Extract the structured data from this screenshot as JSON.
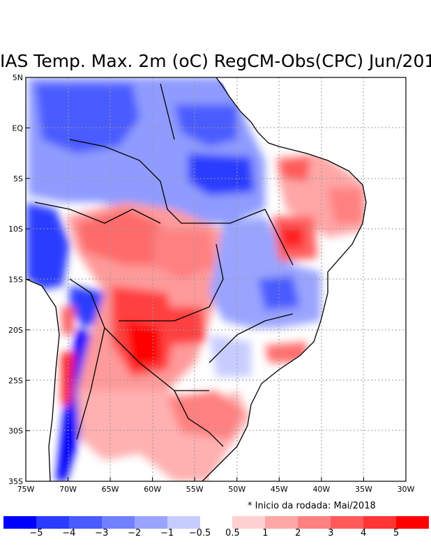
{
  "title": "IAS Temp. Max. 2m (oC) RegCM-Obs(CPC) Jun/201",
  "note": "* Inicio da rodada: Mai/2018",
  "lat_labels": [
    "5N",
    "EQ",
    "5S",
    "10S",
    "15S",
    "20S",
    "25S",
    "30S",
    "35S"
  ],
  "lon_labels": [
    "75W",
    "70W",
    "65W",
    "60W",
    "55W",
    "50W",
    "45W",
    "40W",
    "35W",
    "30W"
  ],
  "colorbar": {
    "colors": [
      "#0000ff",
      "#2a3cff",
      "#4a5bff",
      "#7080ff",
      "#9aa4ff",
      "#c7ccff",
      "#ffffff",
      "#ffd0d0",
      "#ffa6a6",
      "#ff8080",
      "#ff5a5a",
      "#ff3535",
      "#ff0000"
    ],
    "labels": [
      "−5",
      "−4",
      "−3",
      "−2",
      "−1",
      "−0.5",
      "0.5",
      "1",
      "2",
      "3",
      "4",
      "5"
    ]
  }
}
